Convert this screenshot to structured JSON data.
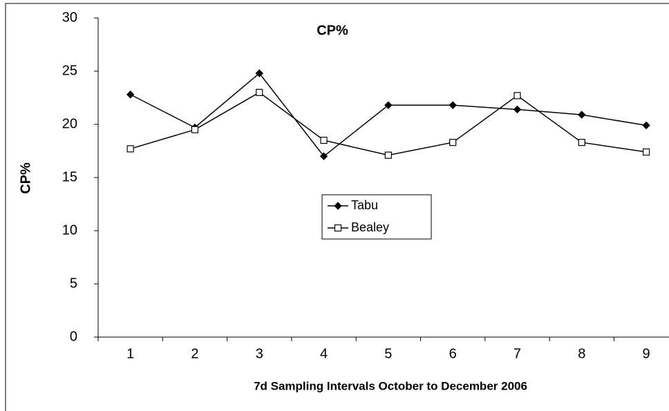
{
  "chart_data": {
    "type": "line",
    "title": "CP%",
    "x_label": "7d Sampling Intervals October to December 2006",
    "y_label": "CP%",
    "categories": [
      "1",
      "2",
      "3",
      "4",
      "5",
      "6",
      "7",
      "8",
      "9"
    ],
    "series": [
      {
        "name": "Tabu",
        "color": "#000000",
        "marker": "diamond",
        "values": [
          22.8,
          19.7,
          24.8,
          17.0,
          21.8,
          21.8,
          21.4,
          20.9,
          19.9
        ]
      },
      {
        "name": "Bealey",
        "color": "#000000",
        "marker": "square",
        "values": [
          17.7,
          19.5,
          23.0,
          18.5,
          17.1,
          18.3,
          22.7,
          18.3,
          17.4
        ]
      }
    ],
    "ylim": [
      0,
      30
    ],
    "yticks": [
      0,
      5,
      10,
      15,
      20,
      25,
      30
    ],
    "grid": false
  }
}
